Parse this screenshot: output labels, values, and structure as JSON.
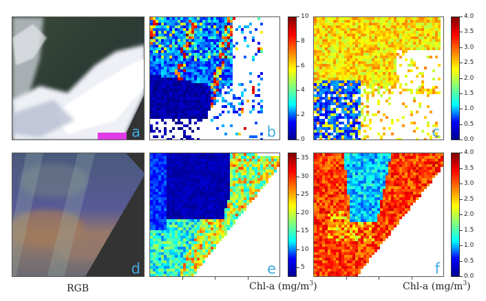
{
  "panels": {
    "a": {
      "label": "a"
    },
    "b": {
      "label": "b"
    },
    "c": {
      "label": "c"
    },
    "d": {
      "label": "d"
    },
    "e": {
      "label": "e"
    },
    "f": {
      "label": "f"
    }
  },
  "colorbars": {
    "b": {
      "ticks": [
        "10",
        "8",
        "6",
        "4",
        "2",
        "0"
      ]
    },
    "c": {
      "ticks": [
        "4.0",
        "3.5",
        "3.0",
        "2.5",
        "2.0",
        "1.5",
        "1.0",
        "0.5",
        "0.0"
      ]
    },
    "e": {
      "ticks": [
        "35",
        "30",
        "25",
        "20",
        "15",
        "10",
        "5"
      ]
    },
    "f": {
      "ticks": [
        "4.0",
        "3.5",
        "3.0",
        "2.5",
        "2.0",
        "1.5",
        "1.0",
        "0.5",
        "0.0"
      ]
    }
  },
  "captions": {
    "rgb": "RGB",
    "chl_e_text": "Chl-a (mg/m",
    "chl_e_exp": "3",
    "chl_e_close": ")",
    "chl_f_text": "Chl-a (mg/m",
    "chl_f_exp": "3",
    "chl_f_close": ")"
  },
  "colormap": "jet"
}
